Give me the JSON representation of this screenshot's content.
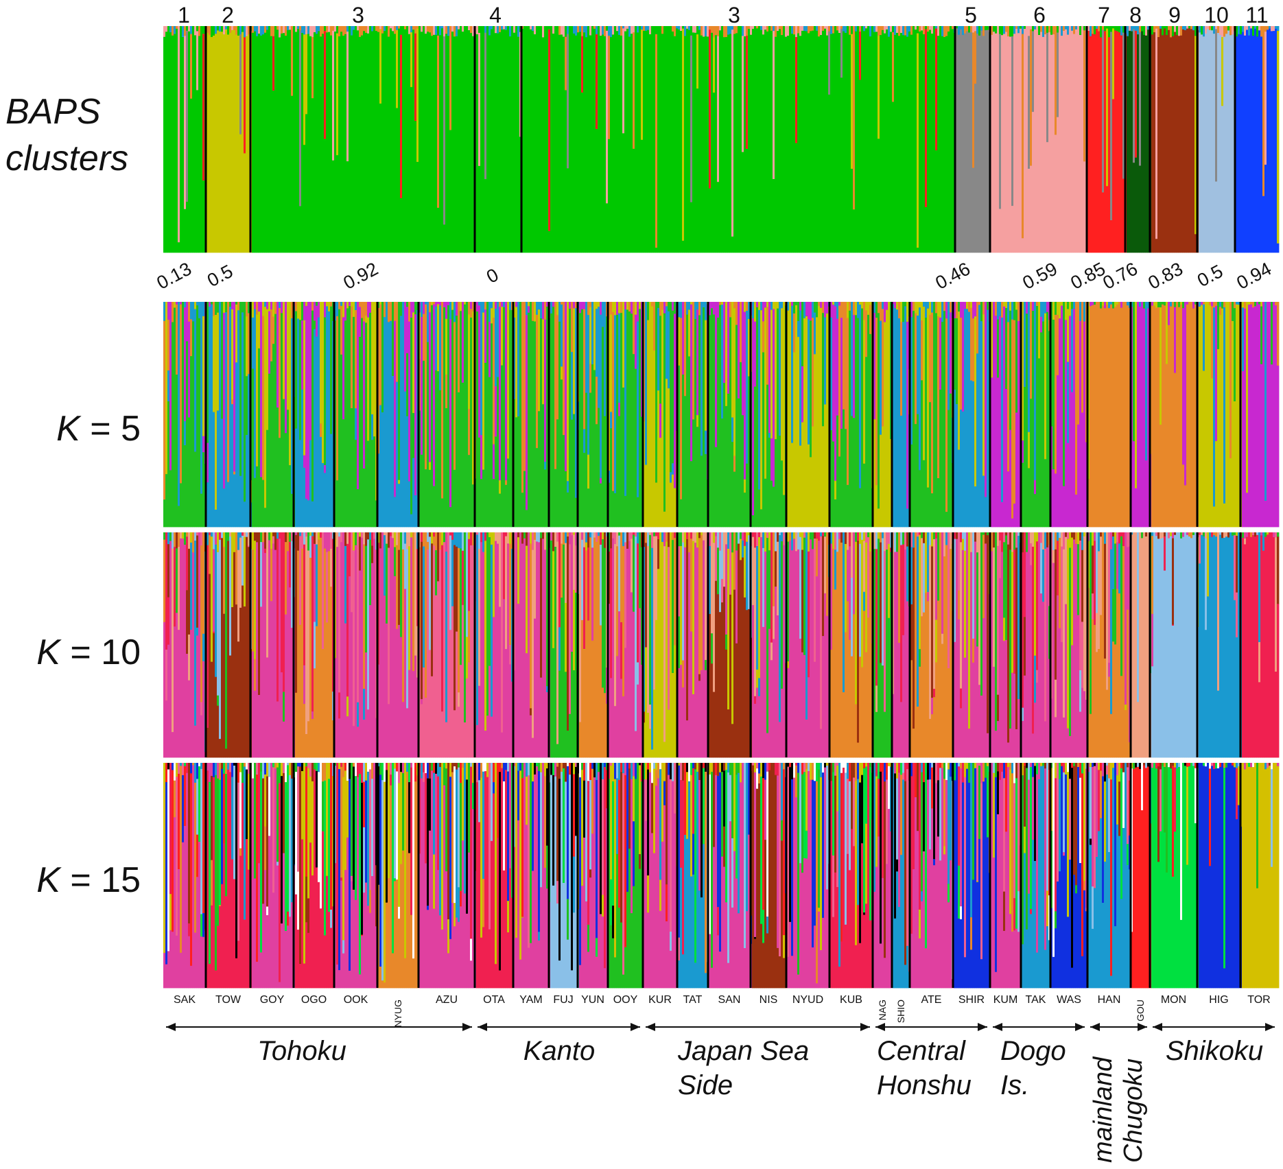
{
  "chart_data": {
    "type": "bar",
    "subtype": "stacked-admixture",
    "title": "",
    "xlabel": "",
    "ylabel": "",
    "ylim": [
      0,
      1
    ],
    "panels": [
      {
        "label_lines": [
          "BAPS",
          "clusters"
        ],
        "italic": true
      },
      {
        "label_k": "K",
        "label_val": " = 5"
      },
      {
        "label_k": "K",
        "label_val": " = 10"
      },
      {
        "label_k": "K",
        "label_val": " = 15"
      }
    ],
    "baps_clusters": [
      {
        "label": "1",
        "value": "0.13"
      },
      {
        "label": "2",
        "value": "0.5"
      },
      {
        "label": "3",
        "value": "0.92"
      },
      {
        "label": "4",
        "value": "0"
      },
      {
        "label": "3",
        "value": ""
      },
      {
        "label": "5",
        "value": "0.46"
      },
      {
        "label": "6",
        "value": "0.59"
      },
      {
        "label": "7",
        "value": "0.85"
      },
      {
        "label": "8",
        "value": "0.76"
      },
      {
        "label": "9",
        "value": "0.83"
      },
      {
        "label": "10",
        "value": "0.5"
      },
      {
        "label": "11",
        "value": "0.94"
      }
    ],
    "populations": [
      "SAK",
      "TOW",
      "GOY",
      "OGO",
      "OOK",
      "NYUG",
      "AZU",
      "OTA",
      "YAM",
      "FUJ",
      "YUN",
      "OOY",
      "KUR",
      "TAT",
      "SAN",
      "NIS",
      "NYUD",
      "KUB",
      "NAG",
      "SHIO",
      "ATE",
      "SHIR",
      "KUM",
      "TAK",
      "WAS",
      "HAN",
      "GOU",
      "MON",
      "HIG",
      "TOR"
    ],
    "regions": [
      {
        "lines": [
          "Tohoku"
        ]
      },
      {
        "lines": [
          "Kanto"
        ]
      },
      {
        "lines": [
          "Japan Sea",
          "Side"
        ]
      },
      {
        "lines": [
          "Central",
          "Honshu"
        ]
      },
      {
        "lines": [
          "Dogo",
          "Is."
        ]
      },
      {
        "lines": [
          "mainland",
          "Chugoku"
        ]
      },
      {
        "lines": [
          "Shikoku"
        ]
      }
    ],
    "colors": {
      "baps": [
        "#00c800",
        "#c8c800",
        "#888888",
        "#f5a0a0",
        "#ff2020",
        "#0a5a0a",
        "#9a3010",
        "#a0c0e0",
        "#1040ff",
        "#e8882a",
        "#1a9ad0"
      ],
      "k5": [
        "#20c020",
        "#1a9ad0",
        "#c8c800",
        "#e8882a",
        "#c828d0"
      ],
      "k10": [
        "#e040a0",
        "#e8882a",
        "#20c020",
        "#c8c800",
        "#9a3010",
        "#f06090",
        "#1a9ad0",
        "#8ac0e8",
        "#f0a080",
        "#f02050"
      ],
      "k15": [
        "#e040a0",
        "#f02050",
        "#e8882a",
        "#8ac0e8",
        "#20c020",
        "#1a9ad0",
        "#9a3010",
        "#ffffff",
        "#000000",
        "#c8c800",
        "#ff2020",
        "#00e040",
        "#1030e0",
        "#d4c000",
        "#f06090"
      ]
    }
  }
}
